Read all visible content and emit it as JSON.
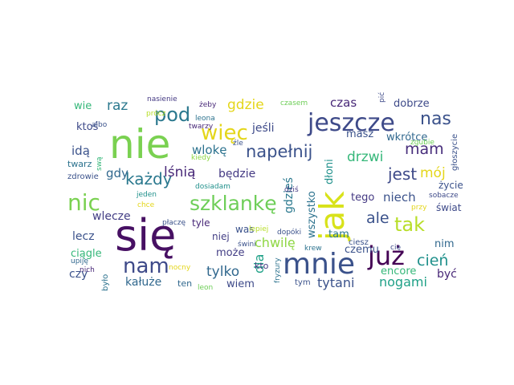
{
  "palette": {
    "dark_purple": "#440154",
    "indigo": "#3b528b",
    "blue": "#31688e",
    "teal": "#21918c",
    "green": "#35b779",
    "lime": "#90d743",
    "yellow": "#e4d61a"
  },
  "words": [
    {
      "text": "się",
      "color": "#471063"
    },
    {
      "text": "nie",
      "color": "#7ad151"
    },
    {
      "text": "jak",
      "color": "#d8e219"
    },
    {
      "text": "mnie",
      "color": "#3b528b"
    },
    {
      "text": "już",
      "color": "#440154"
    },
    {
      "text": "jeszcze",
      "color": "#3e4a89"
    },
    {
      "text": "nic",
      "color": "#7ad151"
    },
    {
      "text": "nam",
      "color": "#3e4a89"
    },
    {
      "text": "więc",
      "color": "#e4d61a"
    },
    {
      "text": "szklankę",
      "color": "#6ece58"
    },
    {
      "text": "tak",
      "color": "#b8de29"
    },
    {
      "text": "pod",
      "color": "#2a788e"
    },
    {
      "text": "napełnij",
      "color": "#3b528b"
    },
    {
      "text": "nas",
      "color": "#3b528b"
    },
    {
      "text": "każdy",
      "color": "#2a788e"
    },
    {
      "text": "jest",
      "color": "#3e4a89"
    },
    {
      "text": "ale",
      "color": "#3b528b"
    },
    {
      "text": "mam",
      "color": "#472d7b"
    },
    {
      "text": "cień",
      "color": "#21918c"
    },
    {
      "text": "raz",
      "color": "#2a788e"
    },
    {
      "text": "gdzie",
      "color": "#e4d61a"
    },
    {
      "text": "lśnią",
      "color": "#482878"
    },
    {
      "text": "drzwi",
      "color": "#35b779"
    },
    {
      "text": "mój",
      "color": "#e4d61a"
    },
    {
      "text": "dla",
      "color": "#1fa187"
    },
    {
      "text": "tylko",
      "color": "#31688e"
    },
    {
      "text": "tytani",
      "color": "#3b528b"
    },
    {
      "text": "chwilę",
      "color": "#8fd744"
    },
    {
      "text": "nogami",
      "color": "#1fa187"
    },
    {
      "text": "czas",
      "color": "#482878"
    },
    {
      "text": "wlokę",
      "color": "#2c728e"
    },
    {
      "text": "gdy",
      "color": "#31688e"
    },
    {
      "text": "niech",
      "color": "#3b528b"
    },
    {
      "text": "wlecze",
      "color": "#433e85"
    },
    {
      "text": "będzie",
      "color": "#443983"
    },
    {
      "text": "idą",
      "color": "#3b528b"
    },
    {
      "text": "jeśli",
      "color": "#3e4a89"
    },
    {
      "text": "gdzieś",
      "color": "#2a788e"
    },
    {
      "text": "wszystko",
      "color": "#2c728e"
    },
    {
      "text": "dłoni",
      "color": "#21918c"
    },
    {
      "text": "wkrótce",
      "color": "#31688e"
    },
    {
      "text": "dobrze",
      "color": "#3e4a89"
    },
    {
      "text": "masz",
      "color": "#3b528b"
    },
    {
      "text": "tego",
      "color": "#443983"
    },
    {
      "text": "lecz",
      "color": "#3b528b"
    },
    {
      "text": "ciągle",
      "color": "#35b779"
    },
    {
      "text": "tam",
      "color": "#2a788e"
    },
    {
      "text": "czemu",
      "color": "#3b528b"
    },
    {
      "text": "kałuże",
      "color": "#31688e"
    },
    {
      "text": "może",
      "color": "#433e85"
    },
    {
      "text": "wiem",
      "color": "#3e4a89"
    },
    {
      "text": "czy",
      "color": "#3b528b"
    },
    {
      "text": "być",
      "color": "#482878"
    },
    {
      "text": "encore",
      "color": "#35b779"
    },
    {
      "text": "nim",
      "color": "#31688e"
    },
    {
      "text": "życie",
      "color": "#3b528b"
    },
    {
      "text": "świat",
      "color": "#3e4a89"
    },
    {
      "text": "głoszycie",
      "color": "#3b528b"
    },
    {
      "text": "ktoś",
      "color": "#3e4a89"
    },
    {
      "text": "wie",
      "color": "#35b779"
    },
    {
      "text": "twarz",
      "color": "#2c728e"
    },
    {
      "text": "zdrowie",
      "color": "#3b528b"
    },
    {
      "text": "nasienie",
      "color": "#443983"
    },
    {
      "text": "żeby",
      "color": "#482878"
    },
    {
      "text": "leona",
      "color": "#2c728e"
    },
    {
      "text": "czasem",
      "color": "#6ece58"
    },
    {
      "text": "pić",
      "color": "#3e4a89"
    },
    {
      "text": "zgubie",
      "color": "#6ece58"
    },
    {
      "text": "było",
      "color": "#2c728e"
    },
    {
      "text": "niej",
      "color": "#433e85"
    },
    {
      "text": "was",
      "color": "#3b528b"
    },
    {
      "text": "tyle",
      "color": "#482878"
    },
    {
      "text": "płaczę",
      "color": "#3b528b"
    },
    {
      "text": "lepiej",
      "color": "#b8de29"
    },
    {
      "text": "kto",
      "color": "#443983"
    },
    {
      "text": "ten",
      "color": "#31688e"
    },
    {
      "text": "leon",
      "color": "#6ece58"
    },
    {
      "text": "upiję",
      "color": "#31688e"
    },
    {
      "text": "nich",
      "color": "#482878"
    },
    {
      "text": "nocny",
      "color": "#e4d61a"
    },
    {
      "text": "tym",
      "color": "#3b528b"
    },
    {
      "text": "krew",
      "color": "#2c728e"
    },
    {
      "text": "cię",
      "color": "#3e4a89"
    },
    {
      "text": "ciesz",
      "color": "#3b528b"
    },
    {
      "text": "przy",
      "color": "#e4d61a"
    },
    {
      "text": "sobacze",
      "color": "#3e4a89"
    },
    {
      "text": "fryzury",
      "color": "#2c728e"
    },
    {
      "text": "dopóki",
      "color": "#3b528b"
    },
    {
      "text": "świni",
      "color": "#3b528b"
    },
    {
      "text": "dziś",
      "color": "#443983"
    },
    {
      "text": "chce",
      "color": "#e4d61a"
    },
    {
      "text": "jeden",
      "color": "#21918c"
    },
    {
      "text": "dosiadam",
      "color": "#21918c"
    },
    {
      "text": "kiedy",
      "color": "#8fd744"
    },
    {
      "text": "źle",
      "color": "#3b528b"
    },
    {
      "text": "twarzy",
      "color": "#482878"
    },
    {
      "text": "prócz",
      "color": "#b8de29"
    },
    {
      "text": "albo",
      "color": "#3b528b"
    },
    {
      "text": "swą",
      "color": "#35b779"
    }
  ]
}
